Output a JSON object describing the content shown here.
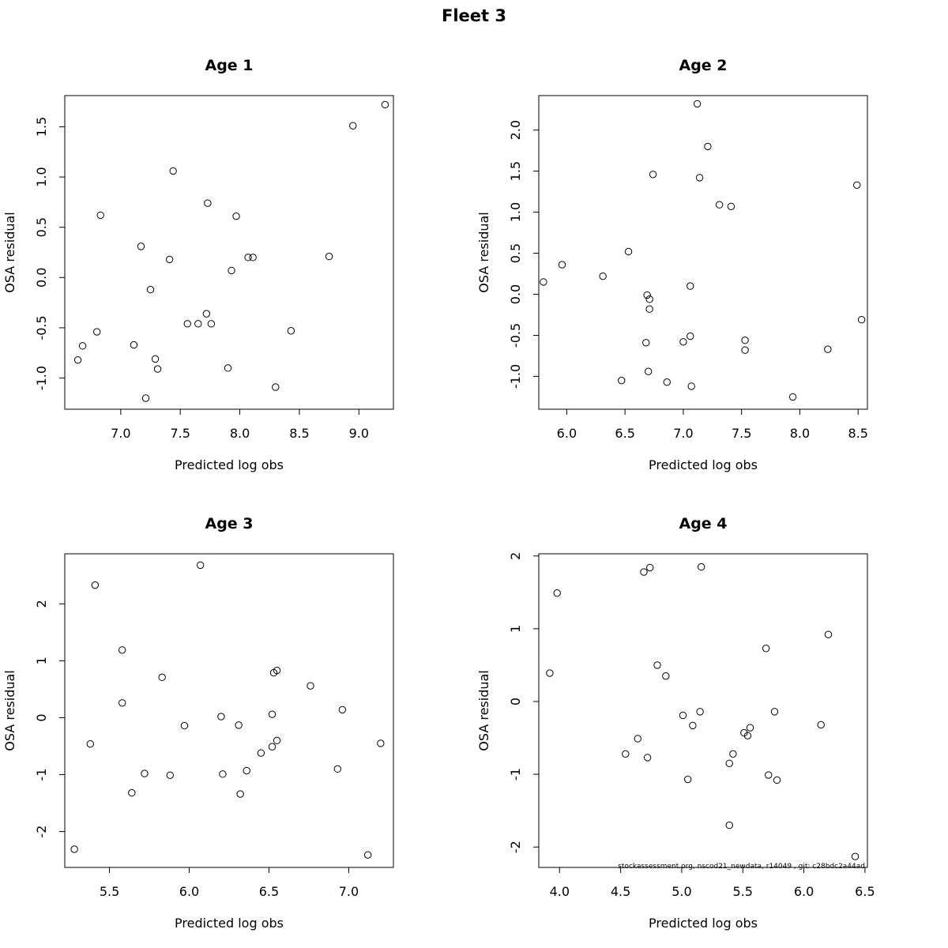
{
  "figure": {
    "title": "Fleet 3",
    "footnote": "stockassessment.org, nscod21_newdata, r14049 , git: c28bdc2a44ad"
  },
  "chart_data": [
    {
      "type": "scatter",
      "title": "Age 1",
      "xlabel": "Predicted log obs",
      "ylabel": "OSA residual",
      "xlim": [
        6.53,
        9.29
      ],
      "ylim": [
        -1.31,
        1.81
      ],
      "xticks": [
        7.0,
        7.5,
        8.0,
        8.5,
        9.0
      ],
      "xtick_labels": [
        "7.0",
        "7.5",
        "8.0",
        "8.5",
        "9.0"
      ],
      "yticks": [
        -1.0,
        -0.5,
        0.0,
        0.5,
        1.0,
        1.5
      ],
      "ytick_labels": [
        "-1.0",
        "-0.5",
        "0.0",
        "0.5",
        "1.0",
        "1.5"
      ],
      "x": [
        9.22,
        8.95,
        7.44,
        7.73,
        6.83,
        7.97,
        7.17,
        7.41,
        8.07,
        8.11,
        8.75,
        7.93,
        7.25,
        7.72,
        7.56,
        7.65,
        7.76,
        8.43,
        6.8,
        6.68,
        7.11,
        6.64,
        7.29,
        7.31,
        7.9,
        8.3,
        7.21
      ],
      "y": [
        1.72,
        1.51,
        1.06,
        0.74,
        0.62,
        0.61,
        0.31,
        0.18,
        0.2,
        0.2,
        0.21,
        0.07,
        -0.12,
        -0.36,
        -0.46,
        -0.46,
        -0.46,
        -0.53,
        -0.54,
        -0.68,
        -0.67,
        -0.82,
        -0.81,
        -0.91,
        -0.9,
        -1.09,
        -1.2
      ]
    },
    {
      "type": "scatter",
      "title": "Age 2",
      "xlabel": "Predicted log obs",
      "ylabel": "OSA residual",
      "xlim": [
        5.76,
        8.58
      ],
      "ylim": [
        -1.4,
        2.42
      ],
      "xticks": [
        6.0,
        6.5,
        7.0,
        7.5,
        8.0,
        8.5
      ],
      "xtick_labels": [
        "6.0",
        "6.5",
        "7.0",
        "7.5",
        "8.0",
        "8.5"
      ],
      "yticks": [
        -1.0,
        -0.5,
        0.0,
        0.5,
        1.0,
        1.5,
        2.0
      ],
      "ytick_labels": [
        "-1.0",
        "-0.5",
        "0.0",
        "0.5",
        "1.0",
        "1.5",
        "2.0"
      ],
      "x": [
        7.12,
        7.21,
        6.74,
        7.14,
        8.49,
        7.31,
        7.41,
        6.53,
        5.96,
        5.8,
        6.31,
        7.06,
        6.69,
        6.71,
        6.71,
        8.53,
        7.53,
        7.06,
        6.68,
        7.0,
        7.53,
        8.24,
        6.7,
        6.47,
        6.86,
        7.07,
        7.94
      ],
      "y": [
        2.32,
        1.8,
        1.46,
        1.42,
        1.33,
        1.09,
        1.07,
        0.52,
        0.36,
        0.15,
        0.22,
        0.1,
        -0.01,
        -0.06,
        -0.18,
        -0.31,
        -0.56,
        -0.51,
        -0.59,
        -0.58,
        -0.68,
        -0.67,
        -0.94,
        -1.05,
        -1.07,
        -1.12,
        -1.25
      ]
    },
    {
      "type": "scatter",
      "title": "Age 3",
      "xlabel": "Predicted log obs",
      "ylabel": "OSA residual",
      "xlim": [
        5.22,
        7.28
      ],
      "ylim": [
        -2.63,
        2.88
      ],
      "xticks": [
        5.5,
        6.0,
        6.5,
        7.0
      ],
      "xtick_labels": [
        "5.5",
        "6.0",
        "6.5",
        "7.0"
      ],
      "yticks": [
        -2,
        -1,
        0,
        1,
        2
      ],
      "ytick_labels": [
        "-2",
        "-1",
        "0",
        "1",
        "2"
      ],
      "x": [
        6.07,
        5.41,
        5.58,
        5.83,
        6.55,
        6.53,
        6.76,
        5.58,
        6.96,
        6.52,
        6.2,
        5.97,
        6.31,
        7.2,
        6.55,
        5.38,
        6.52,
        6.45,
        6.93,
        6.36,
        5.72,
        6.21,
        5.88,
        5.64,
        6.32,
        5.28,
        7.12
      ],
      "y": [
        2.68,
        2.33,
        1.19,
        0.71,
        0.83,
        0.79,
        0.56,
        0.26,
        0.14,
        0.06,
        0.02,
        -0.14,
        -0.13,
        -0.45,
        -0.4,
        -0.46,
        -0.51,
        -0.62,
        -0.9,
        -0.93,
        -0.98,
        -0.99,
        -1.01,
        -1.32,
        -1.34,
        -2.31,
        -2.41
      ]
    },
    {
      "type": "scatter",
      "title": "Age 4",
      "xlabel": "Predicted log obs",
      "ylabel": "OSA residual",
      "xlim": [
        3.83,
        6.52
      ],
      "ylim": [
        -2.28,
        2.03
      ],
      "xticks": [
        4.0,
        4.5,
        5.0,
        5.5,
        6.0,
        6.5
      ],
      "xtick_labels": [
        "4.0",
        "4.5",
        "5.0",
        "5.5",
        "6.0",
        "6.5"
      ],
      "yticks": [
        -2,
        -1,
        0,
        1,
        2
      ],
      "ytick_labels": [
        "-2",
        "-1",
        "0",
        "1",
        "2"
      ],
      "x": [
        5.16,
        4.74,
        4.69,
        3.98,
        6.2,
        5.69,
        4.8,
        3.92,
        4.87,
        5.15,
        5.01,
        5.76,
        5.56,
        5.09,
        6.14,
        5.51,
        5.54,
        4.64,
        5.42,
        4.54,
        4.72,
        5.39,
        5.71,
        5.78,
        5.05,
        5.39,
        6.42
      ],
      "y": [
        1.85,
        1.84,
        1.78,
        1.49,
        0.92,
        0.73,
        0.5,
        0.39,
        0.35,
        -0.14,
        -0.19,
        -0.14,
        -0.36,
        -0.33,
        -0.32,
        -0.43,
        -0.47,
        -0.51,
        -0.72,
        -0.72,
        -0.77,
        -0.85,
        -1.01,
        -1.08,
        -1.07,
        -1.7,
        -2.13
      ]
    }
  ]
}
